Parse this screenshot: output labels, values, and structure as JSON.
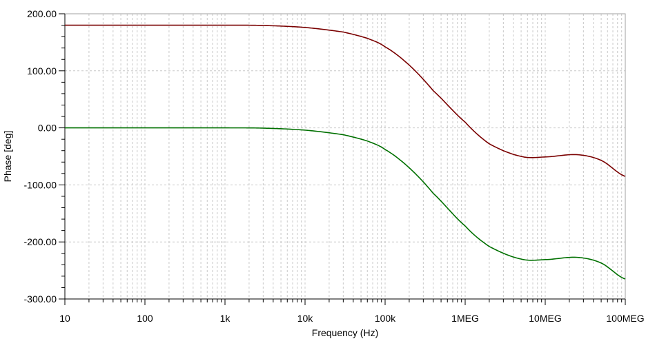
{
  "chart_data": {
    "type": "line",
    "title": "",
    "xlabel": "Frequency (Hz)",
    "ylabel": "Phase [deg]",
    "x_scale": "log",
    "xlim": [
      10,
      100000000
    ],
    "ylim": [
      -300,
      200
    ],
    "grid": true,
    "legend": "none",
    "x_tick_values": [
      10,
      100,
      1000,
      10000,
      100000,
      1000000,
      10000000,
      100000000
    ],
    "x_tick_labels": [
      "10",
      "100",
      "1k",
      "10k",
      "100k",
      "1MEG",
      "10MEG",
      "100MEG"
    ],
    "y_tick_values": [
      200,
      100,
      0,
      -100,
      -200,
      -300
    ],
    "y_tick_labels": [
      "200.00",
      "100.00",
      "0.00",
      "-100.00",
      "-200.00",
      "-300.00"
    ],
    "series": [
      {
        "color": "#7a0000",
        "x": [
          10,
          100,
          1000,
          3000,
          10000,
          30000,
          60000,
          100000,
          200000,
          400000,
          1000000,
          2000000,
          5000000,
          10000000,
          25000000,
          50000000,
          100000000
        ],
        "values": [
          180,
          180,
          180,
          179.5,
          176,
          168,
          157,
          142,
          110,
          65,
          10,
          -28,
          -50,
          -51,
          -47,
          -57,
          -85
        ]
      },
      {
        "color": "#007000",
        "x": [
          10,
          100,
          1000,
          3000,
          10000,
          30000,
          60000,
          100000,
          200000,
          400000,
          1000000,
          2000000,
          5000000,
          10000000,
          25000000,
          50000000,
          100000000
        ],
        "values": [
          0,
          0,
          0,
          -0.5,
          -4,
          -12,
          -23,
          -38,
          -70,
          -115,
          -172,
          -208,
          -230,
          -231,
          -227,
          -237,
          -265
        ]
      }
    ]
  }
}
